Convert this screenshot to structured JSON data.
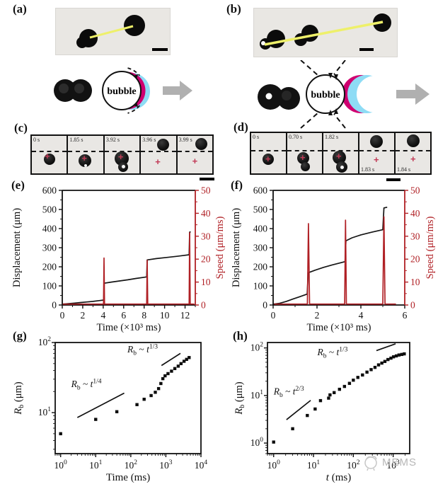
{
  "panels": {
    "a": {
      "label": "(a)",
      "bubble_text": "bubble"
    },
    "b": {
      "label": "(b)",
      "bubble_text": "bubble"
    },
    "c": {
      "label": "(c)",
      "frames": [
        {
          "time": "0 s"
        },
        {
          "time": "1.85 s"
        },
        {
          "time": "3.92 s"
        },
        {
          "time": "3.96 s"
        },
        {
          "time": "3.99 s"
        }
      ]
    },
    "d": {
      "label": "(d)",
      "frames": [
        {
          "time": "0 s"
        },
        {
          "time": "0.70 s"
        },
        {
          "time": "1.82 s"
        },
        {
          "time": "1.83 s"
        },
        {
          "time": "1.84 s"
        }
      ]
    },
    "e": {
      "label": "(e)"
    },
    "f": {
      "label": "(f)"
    },
    "g": {
      "label": "(g)"
    },
    "h": {
      "label": "(h)"
    }
  },
  "marks": {
    "cross": "+"
  },
  "watermark": {
    "text": "MEMS"
  },
  "colors": {
    "accent_red": "#b02025",
    "magenta_shell": "#cf0070",
    "cyan_shell": "#8edcf5",
    "yellow_track": "#eef06a",
    "gray_arrow": "#b0b0b0",
    "cross_red": "#c23a56"
  },
  "ann_parts": {
    "v1": "R",
    "sub": "b",
    "op": " ~ ",
    "v2": "t"
  },
  "chart_data": [
    {
      "panel": "e",
      "type": "line",
      "xlabel": "Time (×10³ ms)",
      "ylabel_left": "Displacement (μm)",
      "ylabel_right": "Speed (μm/ms)",
      "xlim": [
        0,
        13
      ],
      "xticks": [
        0,
        2,
        4,
        6,
        8,
        10,
        12
      ],
      "xminor": 1,
      "ylim_left": [
        0,
        600
      ],
      "yticks_left": [
        0,
        100,
        200,
        300,
        400,
        500,
        600
      ],
      "yminor_left": 50,
      "ylim_right": [
        0,
        50
      ],
      "yticks_right": [
        0,
        10,
        20,
        30,
        40,
        50
      ],
      "yminor_right": 5,
      "grid": false,
      "legend": "none",
      "series": [
        {
          "name": "displacement",
          "axis": "left",
          "color": "#151515",
          "points": [
            [
              0,
              4
            ],
            [
              0.6,
              7
            ],
            [
              1.2,
              10
            ],
            [
              1.8,
              13
            ],
            [
              2.4,
              16
            ],
            [
              3.0,
              19
            ],
            [
              3.6,
              23
            ],
            [
              4.05,
              26
            ],
            [
              4.1,
              114
            ],
            [
              4.8,
              120
            ],
            [
              5.6,
              126
            ],
            [
              6.4,
              132
            ],
            [
              7.2,
              139
            ],
            [
              8.25,
              147
            ],
            [
              8.3,
              236
            ],
            [
              9.2,
              243
            ],
            [
              10.2,
              249
            ],
            [
              11.2,
              255
            ],
            [
              12.4,
              263
            ],
            [
              12.45,
              381
            ],
            [
              12.55,
              383
            ]
          ]
        },
        {
          "name": "speed",
          "axis": "right",
          "color": "#b02025",
          "points": [
            [
              0.05,
              0.4
            ],
            [
              4.03,
              0.4
            ],
            [
              4.08,
              20.5
            ],
            [
              4.13,
              0.4
            ],
            [
              8.25,
              0.4
            ],
            [
              8.3,
              19.5
            ],
            [
              8.35,
              0.4
            ],
            [
              12.4,
              0.4
            ],
            [
              12.45,
              31.5
            ],
            [
              12.5,
              0.4
            ],
            [
              12.9,
              0.4
            ]
          ]
        }
      ]
    },
    {
      "panel": "f",
      "type": "line",
      "xlabel": "Time (×10³ ms)",
      "ylabel_left": "Displacement (μm)",
      "ylabel_right": "Speed (μm/ms)",
      "xlim": [
        0,
        6
      ],
      "xticks": [
        0,
        2,
        4,
        6
      ],
      "xminor": 1,
      "ylim_left": [
        0,
        600
      ],
      "yticks_left": [
        0,
        100,
        200,
        300,
        400,
        500,
        600
      ],
      "yminor_left": 50,
      "ylim_right": [
        0,
        50
      ],
      "yticks_right": [
        0,
        10,
        20,
        30,
        40,
        50
      ],
      "yminor_right": 5,
      "grid": false,
      "legend": "none",
      "series": [
        {
          "name": "displacement",
          "axis": "left",
          "color": "#151515",
          "points": [
            [
              0,
              4
            ],
            [
              0.3,
              9
            ],
            [
              0.6,
              19
            ],
            [
              0.9,
              31
            ],
            [
              1.2,
              43
            ],
            [
              1.55,
              57
            ],
            [
              1.6,
              169
            ],
            [
              1.9,
              182
            ],
            [
              2.3,
              197
            ],
            [
              2.7,
              210
            ],
            [
              3.0,
              219
            ],
            [
              3.28,
              227
            ],
            [
              3.32,
              336
            ],
            [
              3.6,
              352
            ],
            [
              4.0,
              367
            ],
            [
              4.5,
              381
            ],
            [
              5.0,
              394
            ],
            [
              5.05,
              508
            ],
            [
              5.2,
              512
            ]
          ]
        },
        {
          "name": "speed",
          "axis": "right",
          "color": "#b02025",
          "points": [
            [
              0.05,
              0.4
            ],
            [
              1.56,
              0.4
            ],
            [
              1.61,
              35.5
            ],
            [
              1.66,
              0.4
            ],
            [
              3.26,
              0.4
            ],
            [
              3.3,
              37
            ],
            [
              3.34,
              0.4
            ],
            [
              5.0,
              0.4
            ],
            [
              5.05,
              38.5
            ],
            [
              5.1,
              0.4
            ],
            [
              5.6,
              0.4
            ]
          ]
        }
      ]
    },
    {
      "panel": "g",
      "type": "scatter",
      "xscale": "log",
      "yscale": "log",
      "xlabel_rest": "Time (ms)",
      "ylabel": {
        "var": "R",
        "sub": "b",
        "rest": " (μm)"
      },
      "xlim": [
        0.7,
        10000
      ],
      "xticks_exp": [
        0,
        1,
        2,
        3,
        4
      ],
      "ylim": [
        2.6,
        100
      ],
      "yticks_exp": [
        1,
        2
      ],
      "points": [
        [
          1,
          5
        ],
        [
          10,
          8
        ],
        [
          40,
          10.3
        ],
        [
          150,
          13
        ],
        [
          240,
          15.5
        ],
        [
          380,
          17.5
        ],
        [
          500,
          19.5
        ],
        [
          620,
          22
        ],
        [
          720,
          26
        ],
        [
          820,
          30.5
        ],
        [
          950,
          33.5
        ],
        [
          1150,
          36
        ],
        [
          1450,
          39
        ],
        [
          1800,
          42.5
        ],
        [
          2250,
          46
        ],
        [
          2700,
          50
        ],
        [
          3300,
          54
        ],
        [
          3900,
          57.5
        ],
        [
          4600,
          61
        ]
      ],
      "guides": [
        [
          3,
          8.5,
          65,
          19
        ],
        [
          750,
          47,
          2600,
          70
        ]
      ],
      "annotations": [
        {
          "x": 2.0,
          "y": 23,
          "exp": "1/4"
        },
        {
          "x": 80,
          "y": 72,
          "exp": "1/3"
        }
      ]
    },
    {
      "panel": "h",
      "type": "scatter",
      "xscale": "log",
      "yscale": "log",
      "xlabel_var": "t",
      "xlabel_rest": " (ms)",
      "ylabel": {
        "var": "R",
        "sub": "b",
        "rest": " (μm)"
      },
      "xlim": [
        0.7,
        2600
      ],
      "xticks_exp": [
        0,
        1,
        2,
        3
      ],
      "ylim": [
        0.6,
        130
      ],
      "yticks_exp": [
        0,
        1,
        2
      ],
      "points": [
        [
          1,
          1.05
        ],
        [
          3,
          2
        ],
        [
          7,
          3.8
        ],
        [
          11,
          5.2
        ],
        [
          15,
          7.8
        ],
        [
          24,
          8.8
        ],
        [
          26,
          10.3
        ],
        [
          33,
          11.5
        ],
        [
          45,
          13.5
        ],
        [
          60,
          15.5
        ],
        [
          80,
          18
        ],
        [
          100,
          21
        ],
        [
          130,
          24
        ],
        [
          170,
          27
        ],
        [
          220,
          31
        ],
        [
          280,
          35
        ],
        [
          350,
          39
        ],
        [
          430,
          44
        ],
        [
          520,
          48
        ],
        [
          620,
          52
        ],
        [
          740,
          57
        ],
        [
          880,
          61
        ],
        [
          1020,
          65
        ],
        [
          1200,
          68
        ],
        [
          1400,
          71
        ],
        [
          1650,
          73
        ],
        [
          1900,
          75
        ]
      ],
      "guides": [
        [
          2.1,
          3.1,
          8.5,
          7.9
        ],
        [
          380,
          88,
          1150,
          122
        ]
      ],
      "annotations": [
        {
          "x": 1.0,
          "y": 10.5,
          "exp": "2/3"
        },
        {
          "x": 12.5,
          "y": 70,
          "exp": "1/3"
        }
      ]
    }
  ]
}
